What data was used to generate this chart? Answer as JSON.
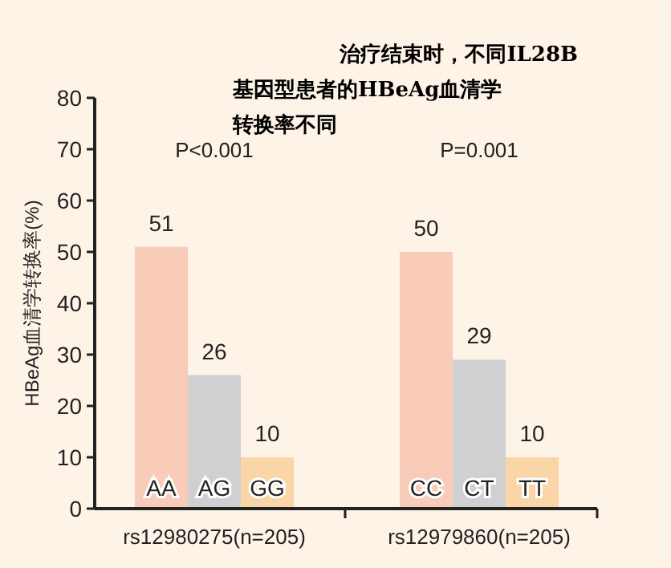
{
  "chart_data": {
    "type": "bar",
    "title": "治疗结束时，不同IL28B基因型患者的HBeAg血清学转换率不同",
    "ylabel": "HBeAg血清学转换率(%)",
    "categories": [
      "AA",
      "AG",
      "GG",
      null,
      null,
      "CC",
      "CT",
      "TT"
    ],
    "values": [
      51,
      26,
      10,
      null,
      null,
      50,
      29,
      10
    ],
    "colors": [
      "#f9cbb9",
      "#d0d0d2",
      "#fad5a8",
      null,
      null,
      "#f9cbb9",
      "#d0d0d2",
      "#fad5a8"
    ],
    "ylim": [
      0,
      80
    ],
    "yticks": [
      0,
      10,
      20,
      30,
      40,
      50,
      60,
      70,
      80
    ],
    "data_labels": true,
    "annotations": [
      "P<0.001",
      "P=0.001",
      "rs12980275(n=205)",
      "rs12979860(n=205)"
    ]
  }
}
